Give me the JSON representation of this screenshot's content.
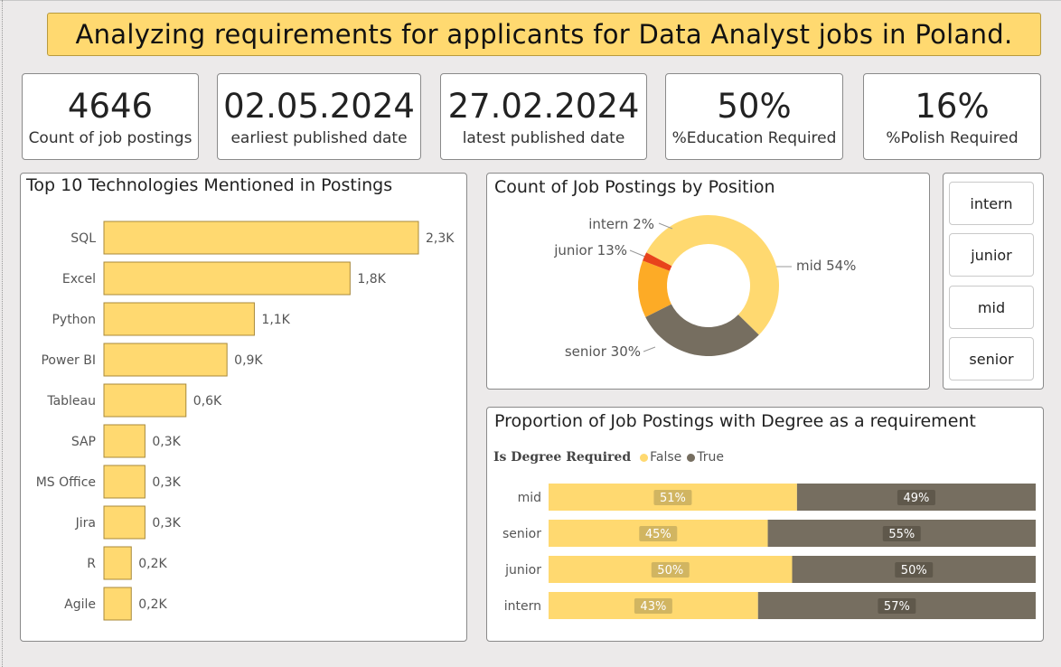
{
  "title": "Analyzing requirements for applicants for Data Analyst jobs in Poland.",
  "kpis": [
    {
      "value": "4646",
      "label": "Count of job postings"
    },
    {
      "value": "02.05.2024",
      "label": "earliest published date"
    },
    {
      "value": "27.02.2024",
      "label": "latest published date"
    },
    {
      "value": "50%",
      "label": "%Education Required"
    },
    {
      "value": "16%",
      "label": "%Polish Required"
    }
  ],
  "slicer": {
    "items": [
      "intern",
      "junior",
      "mid",
      "senior"
    ]
  },
  "colors": {
    "yellow": "#FFD970",
    "orange": "#FDAB26",
    "red": "#E8431B",
    "gray": "#766E60",
    "banner": "#FFD970"
  },
  "chart_data": [
    {
      "type": "bar",
      "orientation": "horizontal",
      "title": "Top 10 Technologies Mentioned in Postings",
      "categories": [
        "SQL",
        "Excel",
        "Python",
        "Power BI",
        "Tableau",
        "SAP",
        "MS Office",
        "Jira",
        "R",
        "Agile"
      ],
      "values": [
        2300,
        1800,
        1100,
        900,
        600,
        300,
        300,
        300,
        200,
        200
      ],
      "data_labels": [
        "2,3K",
        "1,8K",
        "1,1K",
        "0,9K",
        "0,6K",
        "0,3K",
        "0,3K",
        "0,3K",
        "0,2K",
        "0,2K"
      ],
      "color": "#FFD970"
    },
    {
      "type": "pie",
      "donut": true,
      "title": "Count of Job Postings by Position",
      "slices": [
        {
          "label": "mid",
          "value": 54,
          "display": "mid 54%",
          "color": "#FFD970"
        },
        {
          "label": "senior",
          "value": 30,
          "display": "senior 30%",
          "color": "#766E60"
        },
        {
          "label": "junior",
          "value": 13,
          "display": "junior 13%",
          "color": "#FDAB26"
        },
        {
          "label": "intern",
          "value": 2,
          "display": "intern 2%",
          "color": "#E8431B"
        }
      ]
    },
    {
      "type": "bar",
      "orientation": "horizontal",
      "stacked": "100%",
      "title": "Proportion of Job Postings with Degree as a requirement",
      "legend_title": "Is Degree Required",
      "legend_position": "top-left",
      "categories": [
        "mid",
        "senior",
        "junior",
        "intern"
      ],
      "series": [
        {
          "name": "False",
          "values": [
            51,
            45,
            50,
            43
          ],
          "labels": [
            "51%",
            "45%",
            "50%",
            "43%"
          ],
          "color": "#FFD970"
        },
        {
          "name": "True",
          "values": [
            49,
            55,
            50,
            57
          ],
          "labels": [
            "49%",
            "55%",
            "50%",
            "57%"
          ],
          "color": "#766E60"
        }
      ]
    }
  ]
}
